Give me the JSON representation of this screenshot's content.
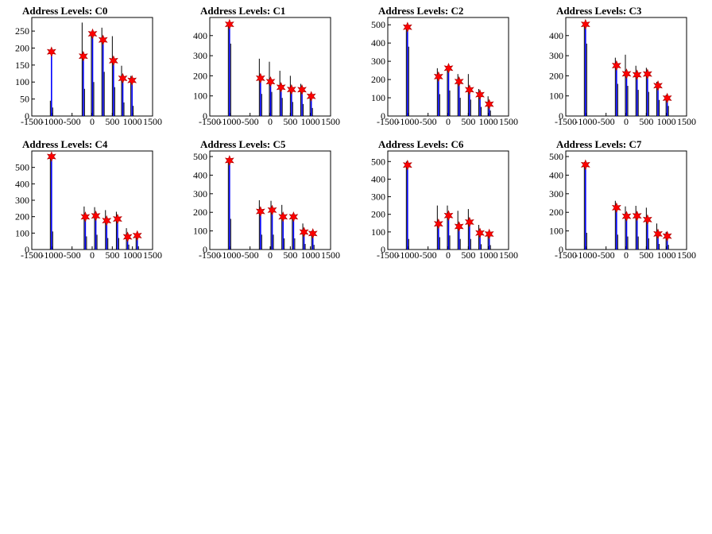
{
  "colors": {
    "histogram": "#000000",
    "fit": "#0000ff",
    "marker": "#ff0000",
    "frame": "#000000"
  },
  "chart_data": [
    {
      "type": "line",
      "title": "Address Levels: C0",
      "xlim": [
        -1500,
        1500
      ],
      "ylim": [
        0,
        290
      ],
      "xticks": [
        -1500,
        -1000,
        -500,
        0,
        500,
        1000,
        1500
      ],
      "yticks": [
        0,
        50,
        100,
        150,
        200,
        250
      ],
      "peaks": [
        {
          "x": -1010,
          "y": 189,
          "spikes": [
            45,
            25
          ]
        },
        {
          "x": -220,
          "y": 176,
          "spikes": [
            275,
            80
          ]
        },
        {
          "x": 10,
          "y": 242,
          "spikes": [
            240,
            100
          ]
        },
        {
          "x": 270,
          "y": 224,
          "spikes": [
            260,
            130
          ]
        },
        {
          "x": 530,
          "y": 163,
          "spikes": [
            235,
            85
          ]
        },
        {
          "x": 760,
          "y": 111,
          "spikes": [
            148,
            40
          ]
        },
        {
          "x": 990,
          "y": 105,
          "spikes": [
            118,
            30
          ]
        }
      ]
    },
    {
      "type": "line",
      "title": "Address Levels: C1",
      "xlim": [
        -1500,
        1500
      ],
      "ylim": [
        0,
        490
      ],
      "xticks": [
        -1500,
        -1000,
        -500,
        0,
        500,
        1000,
        1500
      ],
      "yticks": [
        0,
        100,
        200,
        300,
        400
      ],
      "peaks": [
        {
          "x": -1010,
          "y": 456,
          "spikes": [
            460,
            360
          ]
        },
        {
          "x": -240,
          "y": 188,
          "spikes": [
            285,
            110
          ]
        },
        {
          "x": 10,
          "y": 171,
          "spikes": [
            270,
            120
          ]
        },
        {
          "x": 270,
          "y": 143,
          "spikes": [
            225,
            90
          ]
        },
        {
          "x": 530,
          "y": 132,
          "spikes": [
            200,
            70
          ]
        },
        {
          "x": 790,
          "y": 131,
          "spikes": [
            160,
            60
          ]
        },
        {
          "x": 1020,
          "y": 98,
          "spikes": [
            110,
            40
          ]
        }
      ]
    },
    {
      "type": "line",
      "title": "Address Levels: C2",
      "xlim": [
        -1500,
        1500
      ],
      "ylim": [
        0,
        540
      ],
      "xticks": [
        -1500,
        -1000,
        -500,
        0,
        500,
        1000,
        1500
      ],
      "yticks": [
        0,
        100,
        200,
        300,
        400,
        500
      ],
      "peaks": [
        {
          "x": -1010,
          "y": 487,
          "spikes": [
            500,
            380
          ]
        },
        {
          "x": -240,
          "y": 216,
          "spikes": [
            262,
            120
          ]
        },
        {
          "x": 10,
          "y": 262,
          "spikes": [
            260,
            140
          ]
        },
        {
          "x": 270,
          "y": 189,
          "spikes": [
            230,
            100
          ]
        },
        {
          "x": 530,
          "y": 144,
          "spikes": [
            230,
            90
          ]
        },
        {
          "x": 790,
          "y": 117,
          "spikes": [
            148,
            50
          ]
        },
        {
          "x": 1020,
          "y": 65,
          "spikes": [
            108,
            30
          ]
        }
      ]
    },
    {
      "type": "line",
      "title": "Address Levels: C3",
      "xlim": [
        -1500,
        1500
      ],
      "ylim": [
        0,
        490
      ],
      "xticks": [
        -1500,
        -1000,
        -500,
        0,
        500,
        1000,
        1500
      ],
      "yticks": [
        0,
        100,
        200,
        300,
        400
      ],
      "peaks": [
        {
          "x": -1010,
          "y": 456,
          "spikes": [
            460,
            360
          ]
        },
        {
          "x": -240,
          "y": 251,
          "spikes": [
            290,
            160
          ]
        },
        {
          "x": 10,
          "y": 210,
          "spikes": [
            305,
            150
          ]
        },
        {
          "x": 270,
          "y": 205,
          "spikes": [
            250,
            130
          ]
        },
        {
          "x": 530,
          "y": 209,
          "spikes": [
            240,
            120
          ]
        },
        {
          "x": 790,
          "y": 151,
          "spikes": [
            170,
            80
          ]
        },
        {
          "x": 1020,
          "y": 89,
          "spikes": [
            105,
            50
          ]
        }
      ]
    },
    {
      "type": "line",
      "title": "Address Levels: C4",
      "xlim": [
        -1500,
        1500
      ],
      "ylim": [
        0,
        600
      ],
      "xticks": [
        -1500,
        -1000,
        -500,
        0,
        500,
        1000,
        1500
      ],
      "yticks": [
        0,
        100,
        200,
        300,
        400,
        500
      ],
      "peaks": [
        {
          "x": -1010,
          "y": 566,
          "spikes": [
            570,
            110
          ]
        },
        {
          "x": -170,
          "y": 199,
          "spikes": [
            262,
            80
          ]
        },
        {
          "x": 90,
          "y": 205,
          "spikes": [
            258,
            90
          ]
        },
        {
          "x": 360,
          "y": 176,
          "spikes": [
            240,
            70
          ]
        },
        {
          "x": 630,
          "y": 186,
          "spikes": [
            230,
            70
          ]
        },
        {
          "x": 880,
          "y": 77,
          "spikes": [
            130,
            30
          ]
        },
        {
          "x": 1120,
          "y": 85,
          "spikes": [
            95,
            20
          ]
        }
      ]
    },
    {
      "type": "line",
      "title": "Address Levels: C5",
      "xlim": [
        -1500,
        1500
      ],
      "ylim": [
        0,
        530
      ],
      "xticks": [
        -1500,
        -1000,
        -500,
        0,
        500,
        1000,
        1500
      ],
      "yticks": [
        0,
        100,
        200,
        300,
        400,
        500
      ],
      "peaks": [
        {
          "x": -1010,
          "y": 479,
          "spikes": [
            490,
            165
          ]
        },
        {
          "x": -240,
          "y": 205,
          "spikes": [
            265,
            80
          ]
        },
        {
          "x": 50,
          "y": 212,
          "spikes": [
            262,
            80
          ]
        },
        {
          "x": 320,
          "y": 176,
          "spikes": [
            240,
            60
          ]
        },
        {
          "x": 580,
          "y": 176,
          "spikes": [
            190,
            60
          ]
        },
        {
          "x": 840,
          "y": 94,
          "spikes": [
            140,
            30
          ]
        },
        {
          "x": 1060,
          "y": 86,
          "spikes": [
            100,
            25
          ]
        }
      ]
    },
    {
      "type": "line",
      "title": "Address Levels: C6",
      "xlim": [
        -1500,
        1500
      ],
      "ylim": [
        0,
        560
      ],
      "xticks": [
        -1500,
        -1000,
        -500,
        0,
        500,
        1000,
        1500
      ],
      "yticks": [
        0,
        100,
        200,
        300,
        400,
        500
      ],
      "peaks": [
        {
          "x": -1010,
          "y": 480,
          "spikes": [
            500,
            60
          ]
        },
        {
          "x": -240,
          "y": 146,
          "spikes": [
            250,
            70
          ]
        },
        {
          "x": 10,
          "y": 193,
          "spikes": [
            250,
            80
          ]
        },
        {
          "x": 270,
          "y": 131,
          "spikes": [
            220,
            60
          ]
        },
        {
          "x": 530,
          "y": 156,
          "spikes": [
            230,
            60
          ]
        },
        {
          "x": 790,
          "y": 94,
          "spikes": [
            140,
            30
          ]
        },
        {
          "x": 1020,
          "y": 88,
          "spikes": [
            100,
            25
          ]
        }
      ]
    },
    {
      "type": "line",
      "title": "Address Levels: C7",
      "xlim": [
        -1500,
        1500
      ],
      "ylim": [
        0,
        530
      ],
      "xticks": [
        -1500,
        -1000,
        -500,
        0,
        500,
        1000,
        1500
      ],
      "yticks": [
        0,
        100,
        200,
        300,
        400,
        500
      ],
      "peaks": [
        {
          "x": -1010,
          "y": 456,
          "spikes": [
            470,
            90
          ]
        },
        {
          "x": -240,
          "y": 225,
          "spikes": [
            262,
            80
          ]
        },
        {
          "x": 10,
          "y": 179,
          "spikes": [
            232,
            70
          ]
        },
        {
          "x": 270,
          "y": 181,
          "spikes": [
            235,
            70
          ]
        },
        {
          "x": 530,
          "y": 161,
          "spikes": [
            225,
            60
          ]
        },
        {
          "x": 790,
          "y": 84,
          "spikes": [
            140,
            30
          ]
        },
        {
          "x": 1020,
          "y": 72,
          "spikes": [
            95,
            25
          ]
        }
      ]
    }
  ]
}
